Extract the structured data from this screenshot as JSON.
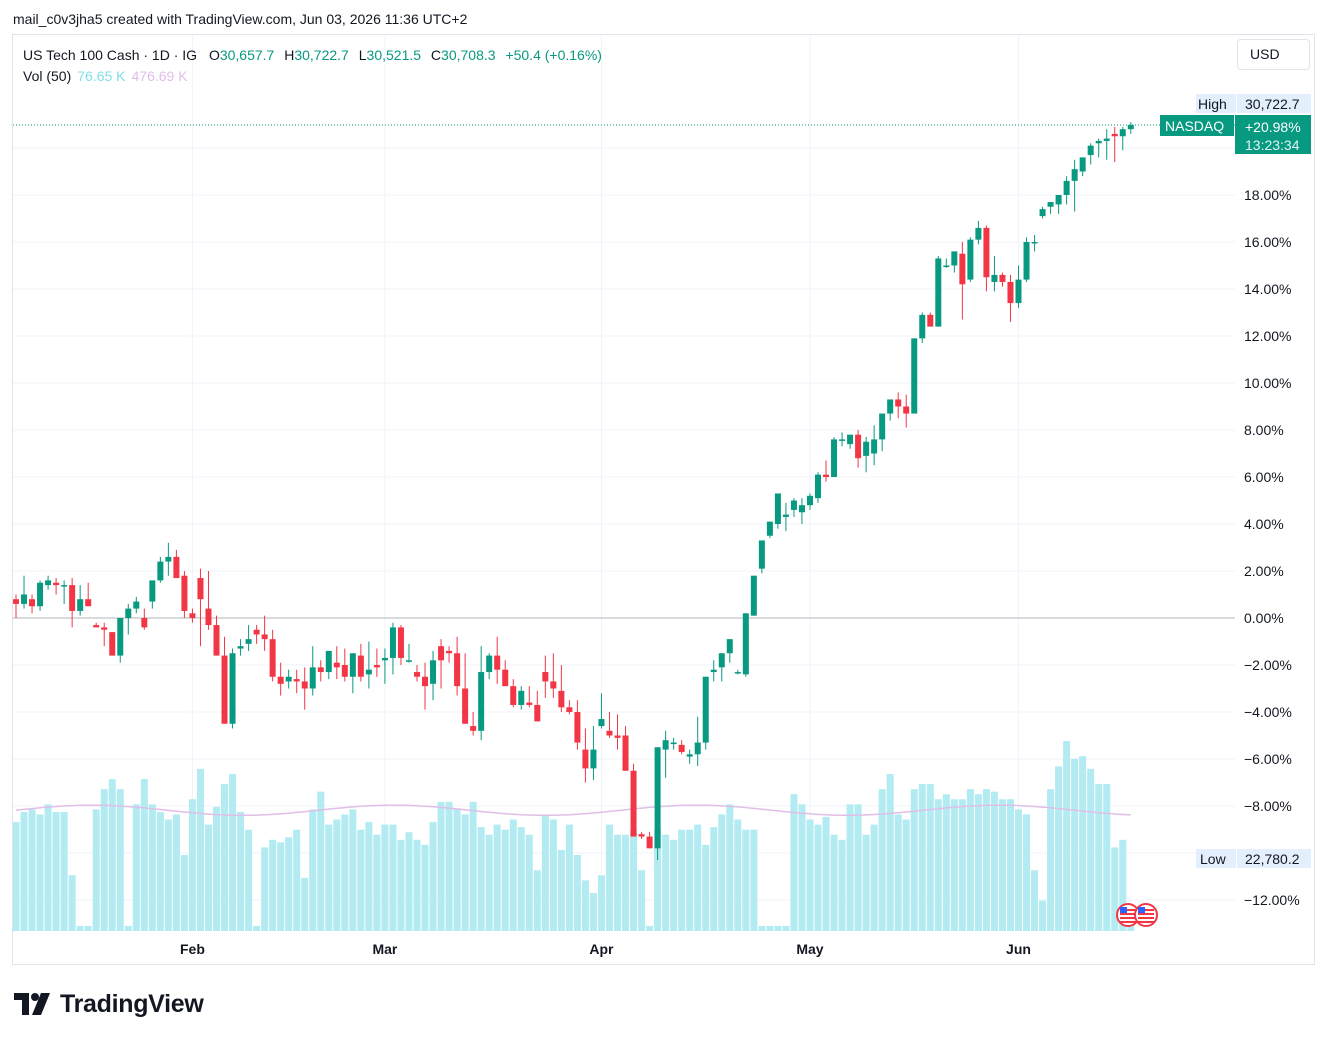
{
  "caption": "mail_c0v3jha5 created with TradingView.com, Jun 03, 2026 11:36 UTC+2",
  "legend": {
    "symbol": "US Tech 100 Cash · 1D · IG",
    "open_label": "O",
    "open": "30,657.7",
    "high_label": "H",
    "high": "30,722.7",
    "low_label": "L",
    "low": "30,521.5",
    "close_label": "C",
    "close": "30,708.3",
    "change": "+50.4 (+0.16%)",
    "vol_label": "Vol (50)",
    "vol_value": "76.65 K",
    "vol_ma_value": "476.69 K"
  },
  "currency": "USD",
  "tags": {
    "high_label": "High",
    "high_value": "30,722.7",
    "low_label": "Low",
    "low_value": "22,780.2",
    "symbol_tag": "NASDAQ",
    "last_pct": "+20.98%",
    "countdown": "13:23:34"
  },
  "brand": "TradingView",
  "colors": {
    "up": "#089981",
    "down": "#f23645",
    "volume": "#b2ebf2",
    "vol_ma": "#e1bee7",
    "grid": "#f0f3fa"
  },
  "chart_data": {
    "type": "candlestick",
    "y_scale": "percent",
    "y_ticks": [
      "18.00%",
      "16.00%",
      "14.00%",
      "12.00%",
      "10.00%",
      "8.00%",
      "6.00%",
      "4.00%",
      "2.00%",
      "0.00%",
      "−2.00%",
      "−4.00%",
      "−6.00%",
      "−8.00%",
      "−12.00%"
    ],
    "y_tick_values": [
      18,
      16,
      14,
      12,
      10,
      8,
      6,
      4,
      2,
      0,
      -2,
      -4,
      -6,
      -8,
      -12
    ],
    "x_ticks": [
      "Feb",
      "Mar",
      "Apr",
      "May",
      "Jun"
    ],
    "x_tick_index": [
      22,
      46,
      73,
      99,
      125
    ],
    "ohlc_pct": [
      [
        0.8,
        1.0,
        0.0,
        0.6
      ],
      [
        0.6,
        1.8,
        0.4,
        1.0
      ],
      [
        0.8,
        1.0,
        0.2,
        0.5
      ],
      [
        0.5,
        1.6,
        0.3,
        1.5
      ],
      [
        1.4,
        1.8,
        1.2,
        1.6
      ],
      [
        1.5,
        1.7,
        1.0,
        1.4
      ],
      [
        1.4,
        1.6,
        0.6,
        1.4
      ],
      [
        1.4,
        1.7,
        -0.4,
        0.3
      ],
      [
        0.3,
        1.4,
        0.1,
        0.8
      ],
      [
        0.8,
        1.5,
        0.5,
        0.5
      ],
      [
        -0.3,
        -0.2,
        -0.4,
        -0.4
      ],
      [
        -0.4,
        -0.2,
        -1.2,
        -0.5
      ],
      [
        -0.6,
        -1.0,
        -1.6,
        -1.6
      ],
      [
        -1.6,
        0.0,
        -1.9,
        0.0
      ],
      [
        0.0,
        0.6,
        -0.7,
        0.4
      ],
      [
        0.4,
        0.9,
        0.2,
        0.7
      ],
      [
        0.0,
        0.4,
        -0.5,
        -0.4
      ],
      [
        0.7,
        1.6,
        0.4,
        1.6
      ],
      [
        1.6,
        2.6,
        1.5,
        2.4
      ],
      [
        2.4,
        3.2,
        1.8,
        2.6
      ],
      [
        2.6,
        2.9,
        1.9,
        1.7
      ],
      [
        1.8,
        2.0,
        0.0,
        0.3
      ],
      [
        0.2,
        0.4,
        -0.2,
        0.0
      ],
      [
        1.7,
        2.1,
        -1.2,
        0.8
      ],
      [
        0.4,
        2.0,
        -0.5,
        -0.3
      ],
      [
        -0.3,
        0.1,
        -1.6,
        -1.6
      ],
      [
        -1.6,
        -0.8,
        -4.5,
        -4.5
      ],
      [
        -4.5,
        -1.3,
        -4.7,
        -1.5
      ],
      [
        -1.3,
        -0.9,
        -1.6,
        -1.2
      ],
      [
        -1.1,
        -0.3,
        -1.4,
        -0.9
      ],
      [
        -0.5,
        -0.3,
        -1.1,
        -0.7
      ],
      [
        -0.7,
        0.1,
        -1.4,
        -0.9
      ],
      [
        -0.9,
        -0.5,
        -2.7,
        -2.5
      ],
      [
        -2.5,
        -1.9,
        -3.3,
        -2.8
      ],
      [
        -2.7,
        -2.2,
        -3.0,
        -2.5
      ],
      [
        -2.6,
        -2.2,
        -3.2,
        -2.7
      ],
      [
        -2.7,
        -2.1,
        -3.9,
        -3.0
      ],
      [
        -3.0,
        -1.2,
        -3.3,
        -2.1
      ],
      [
        -2.1,
        -1.8,
        -2.7,
        -2.3
      ],
      [
        -2.3,
        -1.4,
        -2.6,
        -1.4
      ],
      [
        -1.9,
        -1.2,
        -2.6,
        -2.1
      ],
      [
        -2.0,
        -1.3,
        -2.7,
        -2.5
      ],
      [
        -2.5,
        -1.5,
        -3.2,
        -1.5
      ],
      [
        -1.6,
        -1.1,
        -2.7,
        -2.5
      ],
      [
        -2.4,
        -1.0,
        -3.0,
        -2.2
      ],
      [
        -2.0,
        -1.3,
        -2.5,
        -2.1
      ],
      [
        -1.8,
        -1.3,
        -2.8,
        -1.7
      ],
      [
        -1.7,
        -0.2,
        -2.4,
        -0.4
      ],
      [
        -0.4,
        -0.3,
        -2.0,
        -1.7
      ],
      [
        -1.8,
        -1.1,
        -1.9,
        -1.8
      ],
      [
        -2.3,
        -2.0,
        -2.7,
        -2.5
      ],
      [
        -2.5,
        -1.9,
        -3.9,
        -2.9
      ],
      [
        -2.8,
        -1.4,
        -3.5,
        -1.8
      ],
      [
        -1.2,
        -0.9,
        -3.0,
        -1.8
      ],
      [
        -1.4,
        -1.2,
        -1.9,
        -1.5
      ],
      [
        -1.5,
        -0.8,
        -3.3,
        -2.9
      ],
      [
        -3.0,
        -1.5,
        -4.0,
        -4.5
      ],
      [
        -4.6,
        -4.0,
        -5.0,
        -4.8
      ],
      [
        -4.8,
        -1.2,
        -5.2,
        -2.3
      ],
      [
        -2.3,
        -1.5,
        -2.6,
        -1.6
      ],
      [
        -1.6,
        -0.8,
        -2.8,
        -2.2
      ],
      [
        -2.2,
        -1.8,
        -2.9,
        -2.9
      ],
      [
        -2.9,
        -2.6,
        -3.8,
        -3.7
      ],
      [
        -3.7,
        -2.9,
        -3.9,
        -3.1
      ],
      [
        -3.6,
        -2.9,
        -3.8,
        -3.7
      ],
      [
        -3.7,
        -3.1,
        -3.9,
        -4.4
      ],
      [
        -2.3,
        -1.6,
        -3.4,
        -2.7
      ],
      [
        -2.7,
        -1.5,
        -3.4,
        -3.0
      ],
      [
        -3.1,
        -2.0,
        -4.0,
        -3.8
      ],
      [
        -3.8,
        -3.5,
        -4.1,
        -4.0
      ],
      [
        -4.0,
        -3.5,
        -5.6,
        -5.3
      ],
      [
        -5.6,
        -4.7,
        -7.0,
        -6.4
      ],
      [
        -6.4,
        -4.6,
        -6.9,
        -5.6
      ],
      [
        -4.6,
        -3.2,
        -4.7,
        -4.3
      ],
      [
        -4.8,
        -4.0,
        -5.1,
        -5.0
      ],
      [
        -5.0,
        -4.1,
        -5.6,
        -5.1
      ],
      [
        -5.0,
        -4.6,
        -6.4,
        -6.5
      ],
      [
        -6.5,
        -6.2,
        -8.5,
        -9.3
      ],
      [
        -9.2,
        -9.1,
        -9.4,
        -9.3
      ],
      [
        -9.3,
        -9.1,
        -9.7,
        -9.8
      ],
      [
        -9.8,
        -5.7,
        -10.3,
        -5.5
      ],
      [
        -5.6,
        -4.8,
        -6.8,
        -5.2
      ],
      [
        -5.3,
        -5.1,
        -5.6,
        -5.3
      ],
      [
        -5.4,
        -5.2,
        -5.8,
        -5.7
      ],
      [
        -5.9,
        -5.6,
        -6.2,
        -5.8
      ],
      [
        -5.8,
        -4.2,
        -6.3,
        -5.3
      ],
      [
        -5.3,
        -2.5,
        -5.6,
        -2.5
      ],
      [
        -2.3,
        -1.8,
        -2.7,
        -2.2
      ],
      [
        -2.1,
        -1.5,
        -2.7,
        -1.5
      ],
      [
        -1.5,
        -1.0,
        -1.9,
        -0.9
      ],
      [
        -2.3,
        -2.2,
        -2.4,
        -2.3
      ],
      [
        -2.4,
        0.2,
        -2.5,
        0.2
      ],
      [
        0.1,
        1.8,
        0.1,
        1.8
      ],
      [
        2.1,
        3.3,
        1.9,
        3.3
      ],
      [
        3.5,
        4.1,
        3.4,
        4.1
      ],
      [
        4.0,
        5.2,
        3.8,
        5.3
      ],
      [
        4.3,
        4.9,
        3.7,
        4.4
      ],
      [
        4.6,
        5.1,
        4.3,
        5.0
      ],
      [
        4.5,
        5.1,
        4.0,
        4.8
      ],
      [
        4.8,
        5.3,
        4.6,
        5.2
      ],
      [
        5.1,
        6.2,
        4.9,
        6.1
      ],
      [
        6.1,
        6.7,
        5.8,
        6.0
      ],
      [
        6.0,
        7.7,
        6.0,
        7.6
      ],
      [
        7.6,
        7.9,
        7.3,
        7.6
      ],
      [
        7.4,
        7.8,
        7.2,
        7.8
      ],
      [
        7.8,
        8.0,
        6.4,
        6.8
      ],
      [
        6.9,
        7.7,
        6.2,
        7.5
      ],
      [
        7.0,
        8.2,
        6.5,
        7.6
      ],
      [
        7.6,
        8.4,
        7.1,
        8.7
      ],
      [
        8.7,
        9.3,
        8.4,
        9.3
      ],
      [
        9.3,
        9.6,
        8.5,
        9.0
      ],
      [
        9.0,
        9.5,
        8.1,
        8.7
      ],
      [
        8.7,
        11.9,
        8.8,
        11.9
      ],
      [
        11.9,
        13.0,
        11.7,
        12.9
      ],
      [
        12.9,
        13.0,
        12.5,
        12.4
      ],
      [
        12.4,
        15.4,
        12.4,
        15.3
      ],
      [
        15.0,
        15.3,
        14.9,
        15.0
      ],
      [
        15.0,
        15.6,
        14.7,
        15.6
      ],
      [
        15.5,
        16.0,
        12.7,
        14.2
      ],
      [
        14.4,
        16.2,
        14.3,
        16.1
      ],
      [
        16.1,
        16.9,
        15.9,
        16.6
      ],
      [
        16.6,
        16.7,
        13.9,
        14.5
      ],
      [
        14.3,
        15.4,
        13.9,
        14.6
      ],
      [
        14.6,
        14.7,
        14.1,
        14.3
      ],
      [
        14.3,
        14.6,
        12.6,
        13.4
      ],
      [
        13.4,
        15.0,
        13.2,
        14.4
      ],
      [
        14.4,
        16.2,
        14.3,
        16.0
      ],
      [
        16.0,
        16.3,
        15.6,
        16.0
      ],
      [
        17.1,
        17.5,
        17.0,
        17.4
      ],
      [
        17.5,
        17.7,
        17.2,
        17.7
      ],
      [
        17.6,
        18.0,
        17.2,
        18.0
      ],
      [
        18.0,
        18.8,
        17.6,
        18.6
      ],
      [
        18.6,
        19.5,
        17.3,
        19.1
      ],
      [
        19.0,
        19.5,
        18.8,
        19.6
      ],
      [
        19.7,
        20.2,
        19.3,
        20.1
      ],
      [
        20.2,
        20.4,
        19.6,
        20.3
      ],
      [
        20.3,
        20.8,
        19.5,
        20.4
      ],
      [
        20.6,
        20.9,
        19.4,
        20.5
      ],
      [
        20.5,
        20.9,
        19.9,
        20.8
      ],
      [
        20.8,
        21.1,
        20.6,
        20.98
      ]
    ],
    "volume_k": [
      430,
      470,
      480,
      460,
      500,
      470,
      470,
      220,
      20,
      20,
      480,
      560,
      600,
      560,
      20,
      500,
      600,
      500,
      470,
      440,
      460,
      300,
      520,
      640,
      420,
      490,
      580,
      620,
      470,
      400,
      20,
      330,
      360,
      350,
      370,
      400,
      210,
      480,
      550,
      420,
      440,
      460,
      480,
      400,
      430,
      380,
      420,
      420,
      360,
      390,
      360,
      340,
      430,
      510,
      510,
      480,
      460,
      510,
      410,
      380,
      420,
      400,
      440,
      410,
      380,
      240,
      460,
      440,
      320,
      420,
      300,
      200,
      150,
      220,
      420,
      380,
      380,
      400,
      240,
      20,
      400,
      380,
      360,
      400,
      400,
      420,
      340,
      410,
      460,
      500,
      440,
      400,
      400,
      20,
      20,
      20,
      20,
      540,
      500,
      440,
      420,
      450,
      380,
      360,
      500,
      500,
      380,
      420,
      560,
      620,
      460,
      440,
      560,
      580,
      580,
      520,
      540,
      520,
      520,
      560,
      540,
      560,
      550,
      520,
      520,
      480,
      460,
      240,
      120,
      560,
      650,
      750,
      680,
      690,
      640,
      580,
      580,
      330,
      360,
      76.65
    ],
    "volume_ma_k": 476.69
  }
}
